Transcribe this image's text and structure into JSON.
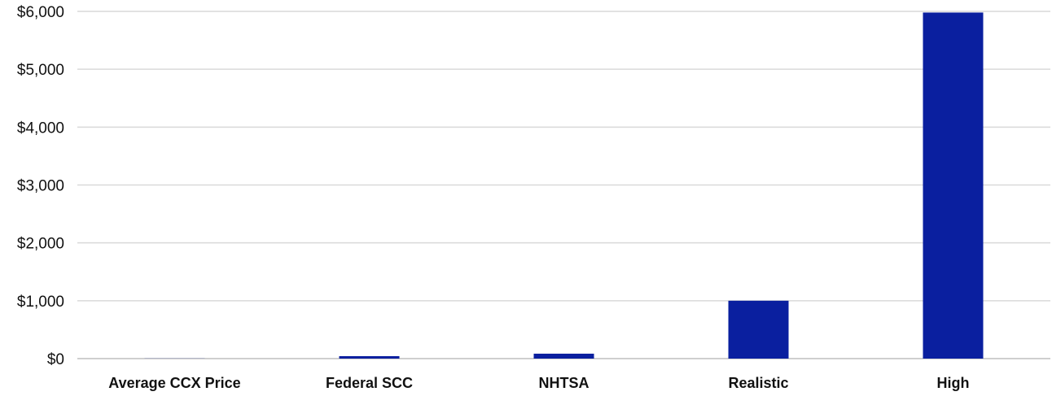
{
  "chart_data": {
    "type": "bar",
    "title": "",
    "xlabel": "",
    "ylabel": "",
    "categories": [
      "Average CCX Price",
      "Federal SCC",
      "NHTSA",
      "Realistic",
      "High"
    ],
    "values": [
      2,
      42,
      85,
      1000,
      5980
    ],
    "ylim": [
      0,
      6000
    ],
    "yticks": [
      0,
      1000,
      2000,
      3000,
      4000,
      5000,
      6000
    ],
    "ytick_labels": [
      "$0",
      "$1,000",
      "$2,000",
      "$3,000",
      "$4,000",
      "$5,000",
      "$6,000"
    ],
    "grid": true,
    "legend": "none",
    "bar_color": "#0a1f9f"
  }
}
